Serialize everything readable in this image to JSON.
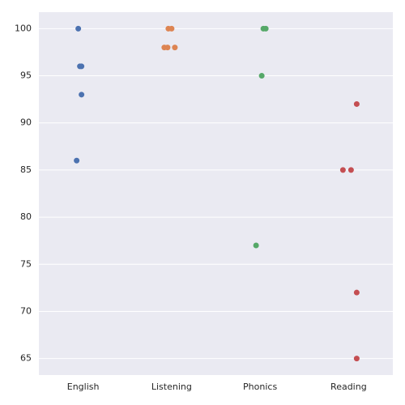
{
  "chart_data": {
    "type": "strip",
    "categories": [
      "English",
      "Listening",
      "Phonics",
      "Reading"
    ],
    "colors": [
      "#4c72b0",
      "#dd8452",
      "#55a868",
      "#c44e52"
    ],
    "values": [
      [
        100,
        96,
        96,
        93,
        86
      ],
      [
        100,
        100,
        98,
        98,
        98
      ],
      [
        100,
        100,
        95,
        77
      ],
      [
        92,
        85,
        85,
        72,
        65
      ]
    ],
    "ylim": [
      63.25,
      101.75
    ],
    "yticks": [
      65,
      70,
      75,
      80,
      85,
      90,
      95,
      100
    ],
    "grid": true
  }
}
